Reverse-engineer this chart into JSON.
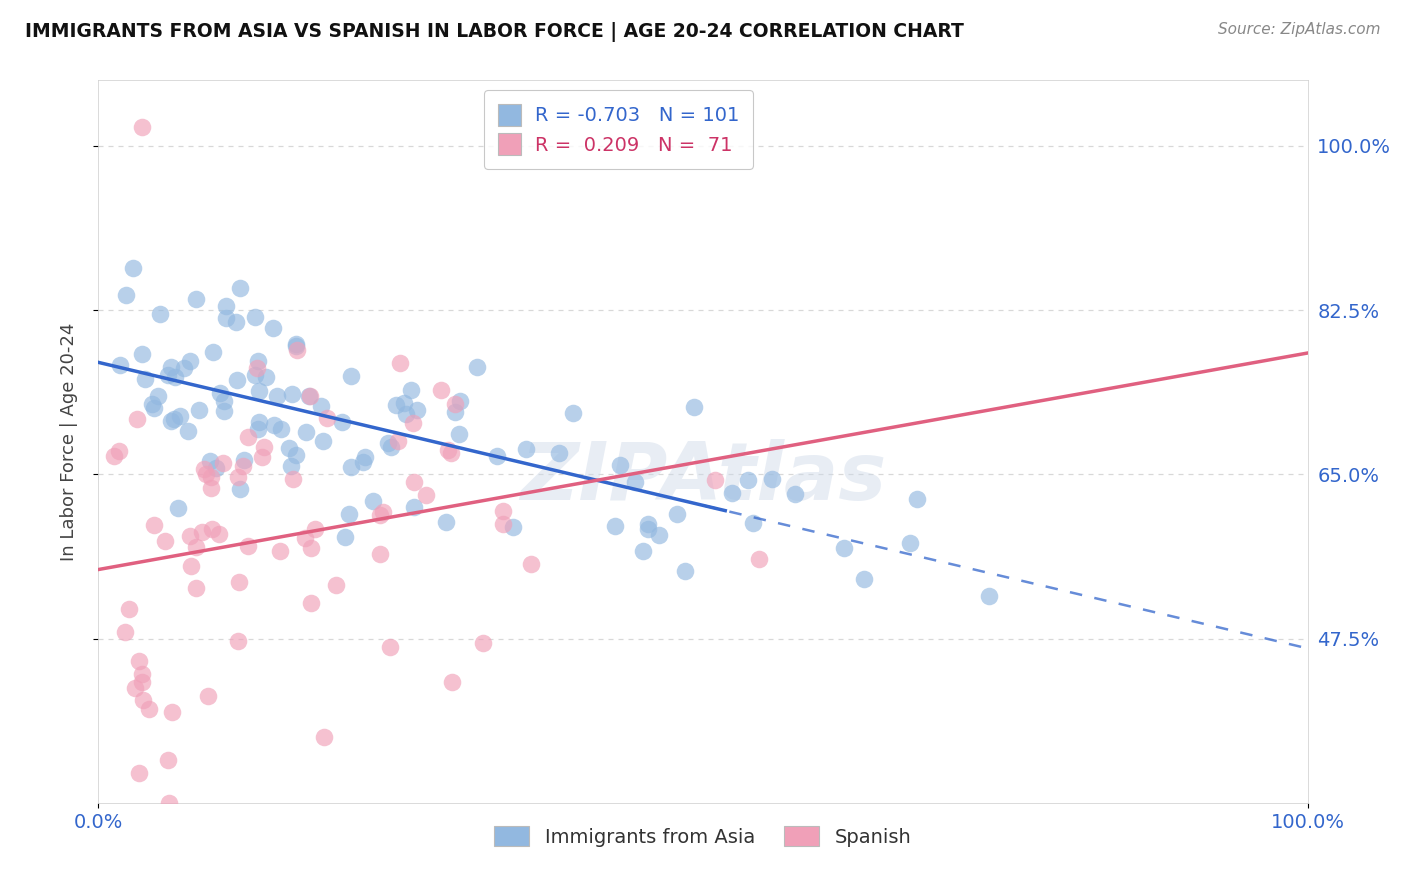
{
  "title": "IMMIGRANTS FROM ASIA VS SPANISH IN LABOR FORCE | AGE 20-24 CORRELATION CHART",
  "source": "Source: ZipAtlas.com",
  "ylabel": "In Labor Force | Age 20-24",
  "ytick_positions": [
    0.475,
    0.65,
    0.825,
    1.0
  ],
  "ytick_labels": [
    "47.5%",
    "65.0%",
    "82.5%",
    "100.0%"
  ],
  "xtick_positions": [
    0.0,
    1.0
  ],
  "xtick_labels": [
    "0.0%",
    "100.0%"
  ],
  "bottom_labels": [
    "Immigrants from Asia",
    "Spanish"
  ],
  "xlim": [
    0.0,
    1.0
  ],
  "ylim": [
    0.3,
    1.07
  ],
  "blue_color": "#92b8e0",
  "pink_color": "#f0a0b8",
  "blue_line_color": "#3366cc",
  "pink_line_color": "#e06080",
  "background_color": "#ffffff",
  "grid_color": "#d8d8d8",
  "blue_R": -0.703,
  "blue_N": 101,
  "pink_R": 0.209,
  "pink_N": 71,
  "watermark_color": "#ccd8e8",
  "watermark_alpha": 0.45
}
